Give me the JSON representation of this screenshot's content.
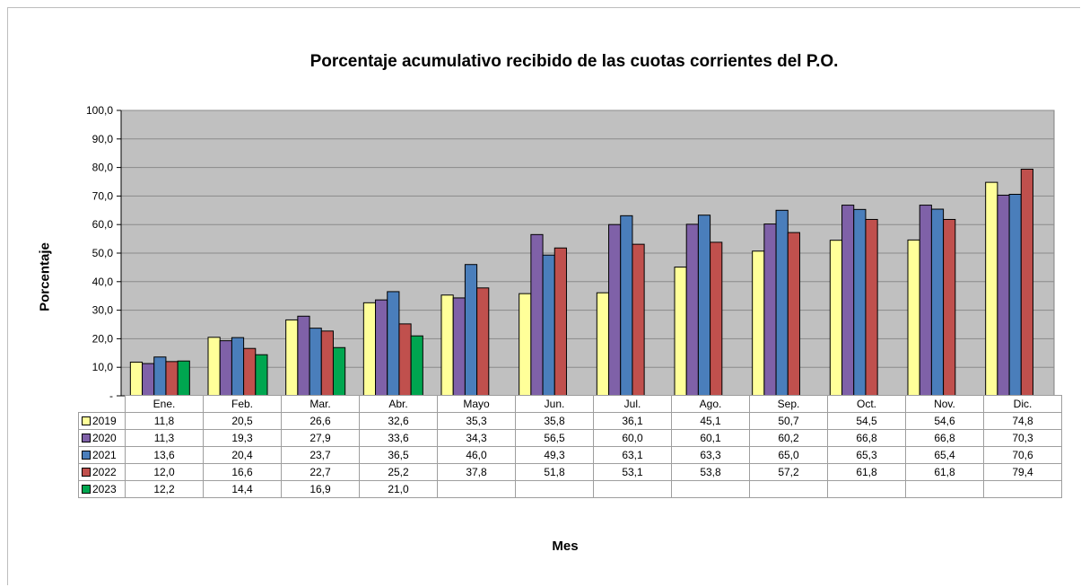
{
  "chart_data": {
    "type": "bar",
    "title": "Porcentaje acumulativo recibido de las cuotas corrientes del P.O.",
    "xlabel": "Mes",
    "ylabel": "Porcentaje",
    "ylim": [
      0,
      100
    ],
    "y_ticks": [
      "-",
      "10,0",
      "20,0",
      "30,0",
      "40,0",
      "50,0",
      "60,0",
      "70,0",
      "80,0",
      "90,0",
      "100,0"
    ],
    "grid": true,
    "legend": "data-table",
    "categories": [
      "Ene.",
      "Feb.",
      "Mar.",
      "Abr.",
      "Mayo",
      "Jun.",
      "Jul.",
      "Ago.",
      "Sep.",
      "Oct.",
      "Nov.",
      "Dic."
    ],
    "series": [
      {
        "name": "2019",
        "color": "#ffff99",
        "values": [
          11.8,
          20.5,
          26.6,
          32.6,
          35.3,
          35.8,
          36.1,
          45.1,
          50.7,
          54.5,
          54.6,
          74.8
        ],
        "labels": [
          "11,8",
          "20,5",
          "26,6",
          "32,6",
          "35,3",
          "35,8",
          "36,1",
          "45,1",
          "50,7",
          "54,5",
          "54,6",
          "74,8"
        ]
      },
      {
        "name": "2020",
        "color": "#7f61a8",
        "values": [
          11.3,
          19.3,
          27.9,
          33.6,
          34.3,
          56.5,
          60.0,
          60.1,
          60.2,
          66.8,
          66.8,
          70.3
        ],
        "labels": [
          "11,3",
          "19,3",
          "27,9",
          "33,6",
          "34,3",
          "56,5",
          "60,0",
          "60,1",
          "60,2",
          "66,8",
          "66,8",
          "70,3"
        ]
      },
      {
        "name": "2021",
        "color": "#4a7ebb",
        "values": [
          13.6,
          20.4,
          23.7,
          36.5,
          46.0,
          49.3,
          63.1,
          63.3,
          65.0,
          65.3,
          65.4,
          70.6
        ],
        "labels": [
          "13,6",
          "20,4",
          "23,7",
          "36,5",
          "46,0",
          "49,3",
          "63,1",
          "63,3",
          "65,0",
          "65,3",
          "65,4",
          "70,6"
        ]
      },
      {
        "name": "2022",
        "color": "#c0504d",
        "values": [
          12.0,
          16.6,
          22.7,
          25.2,
          37.8,
          51.8,
          53.1,
          53.8,
          57.2,
          61.8,
          61.8,
          79.4
        ],
        "labels": [
          "12,0",
          "16,6",
          "22,7",
          "25,2",
          "37,8",
          "51,8",
          "53,1",
          "53,8",
          "57,2",
          "61,8",
          "61,8",
          "79,4"
        ]
      },
      {
        "name": "2023",
        "color": "#00a650",
        "values": [
          12.2,
          14.4,
          16.9,
          21.0,
          null,
          null,
          null,
          null,
          null,
          null,
          null,
          null
        ],
        "labels": [
          "12,2",
          "14,4",
          "16,9",
          "21,0",
          "",
          "",
          "",
          "",
          "",
          "",
          "",
          ""
        ]
      }
    ]
  }
}
